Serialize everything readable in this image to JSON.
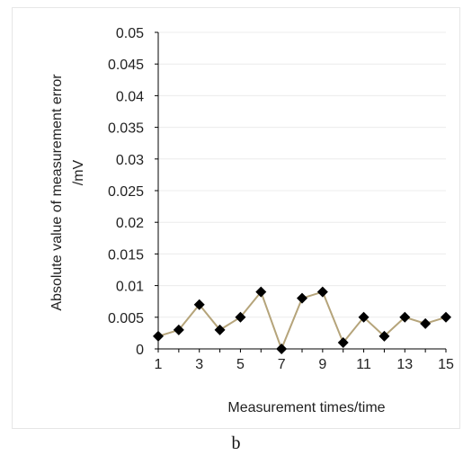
{
  "chart_data": {
    "type": "line",
    "title": "",
    "xlabel": "Measurement times/time",
    "ylabel_lines": [
      "Absolute value of measurement error",
      "/mV"
    ],
    "x": [
      1,
      2,
      3,
      4,
      5,
      6,
      7,
      8,
      9,
      10,
      11,
      12,
      13,
      14,
      15
    ],
    "series": [
      {
        "values": [
          0.002,
          0.003,
          0.007,
          0.003,
          0.005,
          0.009,
          0.0,
          0.008,
          0.009,
          0.001,
          0.005,
          0.002,
          0.005,
          0.004,
          0.005
        ]
      }
    ],
    "xlim": [
      1,
      15
    ],
    "ylim": [
      0,
      0.05
    ],
    "xticks": [
      "1",
      "3",
      "5",
      "7",
      "9",
      "11",
      "13",
      "15"
    ],
    "yticks": [
      "0",
      "0.005",
      "0.01",
      "0.015",
      "0.02",
      "0.025",
      "0.03",
      "0.035",
      "0.04",
      "0.045",
      "0.05"
    ],
    "grid": true,
    "legend": "none",
    "line_color": "#b5a47a",
    "marker_color": "#000000",
    "grid_color": "#ececec",
    "marker": "diamond"
  },
  "panel_label": "b"
}
